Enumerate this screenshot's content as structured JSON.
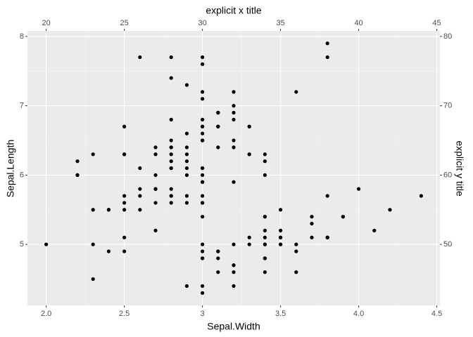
{
  "chart_data": {
    "type": "scatter",
    "x_label": "Sepal.Width",
    "y_label": "Sepal.Length",
    "x2_label": "explicit x title",
    "y2_label": "explicit y title",
    "color": "#000000",
    "grid": true,
    "xlim": [
      1.88,
      4.52
    ],
    "ylim": [
      4.12,
      8.08
    ],
    "xticks": [
      {
        "value": 2,
        "label": "2.0"
      },
      2.5,
      3,
      3.5,
      {
        "value": 4,
        "label": "4.0"
      },
      4.5
    ],
    "yticks": [
      5,
      6,
      7,
      8
    ],
    "x2lim": [
      18.8,
      45.2
    ],
    "y2lim": [
      41.2,
      80.8
    ],
    "x2ticks": [
      20,
      25,
      30,
      35,
      40,
      45
    ],
    "y2ticks": [
      50,
      60,
      70,
      80
    ],
    "x": [
      3.5,
      3.0,
      3.2,
      3.1,
      3.6,
      3.9,
      3.4,
      3.4,
      2.9,
      3.1,
      3.7,
      3.4,
      3.0,
      3.0,
      4.0,
      4.4,
      3.9,
      3.5,
      3.8,
      3.8,
      3.4,
      3.7,
      3.6,
      3.3,
      3.4,
      3.0,
      3.4,
      3.5,
      3.4,
      3.2,
      3.1,
      3.4,
      4.1,
      4.2,
      3.1,
      3.2,
      3.5,
      3.6,
      3.0,
      3.4,
      3.5,
      2.3,
      3.2,
      3.5,
      3.8,
      3.0,
      3.8,
      3.2,
      3.7,
      3.3,
      3.2,
      3.2,
      3.1,
      2.3,
      2.8,
      2.8,
      3.3,
      2.4,
      2.9,
      2.7,
      2.0,
      3.0,
      2.2,
      2.9,
      2.9,
      3.1,
      3.0,
      2.7,
      2.2,
      2.5,
      3.2,
      2.8,
      2.5,
      2.8,
      2.9,
      3.0,
      2.8,
      3.0,
      2.9,
      2.6,
      2.4,
      2.4,
      2.7,
      2.7,
      3.0,
      3.4,
      3.1,
      2.3,
      3.0,
      2.5,
      2.6,
      3.0,
      2.6,
      2.3,
      2.7,
      3.0,
      2.9,
      2.9,
      2.5,
      2.8,
      3.3,
      2.7,
      3.0,
      2.9,
      3.0,
      3.0,
      2.5,
      2.9,
      2.5,
      3.6,
      3.2,
      2.7,
      3.0,
      2.5,
      2.8,
      3.2,
      3.0,
      3.8,
      2.6,
      2.2,
      3.2,
      2.8,
      2.8,
      2.7,
      3.3,
      3.2,
      2.8,
      3.0,
      2.8,
      3.0,
      2.8,
      3.8,
      2.8,
      2.8,
      2.6,
      3.0,
      3.4,
      3.1,
      3.0,
      3.1,
      3.1,
      3.1,
      2.7,
      3.2,
      3.3,
      3.0,
      2.5,
      3.0,
      3.4,
      3.0
    ],
    "y": [
      5.1,
      4.9,
      4.7,
      4.6,
      5.0,
      5.4,
      4.6,
      5.0,
      4.4,
      4.9,
      5.4,
      4.8,
      4.8,
      4.3,
      5.8,
      5.7,
      5.4,
      5.1,
      5.7,
      5.1,
      5.4,
      5.1,
      4.6,
      5.1,
      4.8,
      5.0,
      5.0,
      5.2,
      5.2,
      4.7,
      4.8,
      5.4,
      5.2,
      5.5,
      4.9,
      5.0,
      5.5,
      4.9,
      4.4,
      5.1,
      5.0,
      4.5,
      4.4,
      5.0,
      5.1,
      4.8,
      5.1,
      4.6,
      5.3,
      5.0,
      7.0,
      6.4,
      6.9,
      5.5,
      6.5,
      5.7,
      6.3,
      4.9,
      6.6,
      5.2,
      5.0,
      5.9,
      6.0,
      6.1,
      5.6,
      6.7,
      5.6,
      5.8,
      6.2,
      5.6,
      5.9,
      6.1,
      6.3,
      6.1,
      6.4,
      6.6,
      6.8,
      6.7,
      6.0,
      5.7,
      5.5,
      5.5,
      5.8,
      6.0,
      5.4,
      6.0,
      6.7,
      6.3,
      5.6,
      5.5,
      5.5,
      6.1,
      5.8,
      5.0,
      5.6,
      5.7,
      5.7,
      6.2,
      5.1,
      5.7,
      6.3,
      5.8,
      7.1,
      6.3,
      6.5,
      7.6,
      4.9,
      7.3,
      6.7,
      7.2,
      6.5,
      6.4,
      6.8,
      5.7,
      5.8,
      6.4,
      6.5,
      7.7,
      7.7,
      6.0,
      6.9,
      5.6,
      7.7,
      6.3,
      6.7,
      7.2,
      6.2,
      6.1,
      6.4,
      7.2,
      7.4,
      7.9,
      6.4,
      6.3,
      6.1,
      7.7,
      6.3,
      6.4,
      6.0,
      6.9,
      6.7,
      6.9,
      5.8,
      6.8,
      6.7,
      6.7,
      6.3,
      6.5,
      6.2,
      5.9
    ]
  }
}
